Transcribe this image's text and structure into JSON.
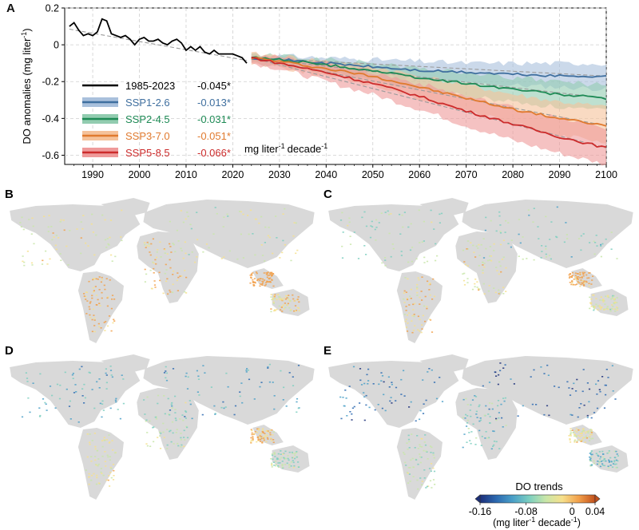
{
  "chart_data": [
    {
      "panel": "A",
      "type": "line",
      "ylabel_main": "DO anomalies (mg liter",
      "ylabel_sup": "-1",
      "ylabel_end": ")",
      "xlim": [
        1984,
        2100
      ],
      "ylim": [
        -0.65,
        0.2
      ],
      "xticks": [
        "1990",
        "2000",
        "2010",
        "2020",
        "2030",
        "2040",
        "2050",
        "2060",
        "2070",
        "2080",
        "2090",
        "2100"
      ],
      "yticks": [
        "0.2",
        "0",
        "-0.2",
        "-0.4",
        "-0.6"
      ],
      "grid": true,
      "legend_position": "lower-left",
      "trend_unit": "mg liter",
      "trend_unit_sup": "-1",
      "trend_unit_end": "decade",
      "trend_unit_sup2": "-1",
      "historical": {
        "name": "1985-2023",
        "trend": "-0.045*",
        "color": "#000000",
        "x": [
          1985,
          1986,
          1987,
          1988,
          1989,
          1990,
          1991,
          1992,
          1993,
          1994,
          1995,
          1996,
          1997,
          1998,
          1999,
          2000,
          2001,
          2002,
          2003,
          2004,
          2005,
          2006,
          2007,
          2008,
          2009,
          2010,
          2011,
          2012,
          2013,
          2014,
          2015,
          2016,
          2017,
          2018,
          2019,
          2020,
          2021,
          2022,
          2023
        ],
        "y": [
          0.1,
          0.12,
          0.08,
          0.05,
          0.06,
          0.05,
          0.07,
          0.14,
          0.13,
          0.06,
          0.05,
          0.04,
          0.05,
          0.03,
          0.0,
          0.03,
          0.04,
          0.02,
          0.02,
          0.03,
          0.01,
          0.0,
          0.02,
          0.03,
          0.01,
          -0.03,
          -0.01,
          -0.03,
          -0.01,
          -0.04,
          -0.05,
          -0.03,
          -0.05,
          -0.05,
          -0.05,
          -0.05,
          -0.06,
          -0.07,
          -0.1
        ]
      },
      "series": [
        {
          "name": "SSP1-2.6",
          "trend": "-0.013*",
          "color": "#3f6f9f",
          "band_color": "#a9c0dc",
          "x": [
            2024,
            2030,
            2040,
            2050,
            2060,
            2070,
            2080,
            2090,
            2100
          ],
          "y": [
            -0.07,
            -0.08,
            -0.1,
            -0.12,
            -0.14,
            -0.15,
            -0.16,
            -0.17,
            -0.17
          ],
          "lower": [
            -0.1,
            -0.11,
            -0.14,
            -0.16,
            -0.19,
            -0.21,
            -0.22,
            -0.23,
            -0.24
          ],
          "upper": [
            -0.05,
            -0.06,
            -0.07,
            -0.08,
            -0.09,
            -0.1,
            -0.1,
            -0.1,
            -0.1
          ]
        },
        {
          "name": "SSP2-4.5",
          "trend": "-0.031*",
          "color": "#1e8a55",
          "band_color": "#92ccb0",
          "x": [
            2024,
            2030,
            2040,
            2050,
            2060,
            2070,
            2080,
            2090,
            2100
          ],
          "y": [
            -0.07,
            -0.08,
            -0.11,
            -0.14,
            -0.18,
            -0.21,
            -0.24,
            -0.27,
            -0.29
          ],
          "lower": [
            -0.1,
            -0.11,
            -0.15,
            -0.19,
            -0.24,
            -0.28,
            -0.31,
            -0.34,
            -0.36
          ],
          "upper": [
            -0.05,
            -0.06,
            -0.08,
            -0.1,
            -0.13,
            -0.15,
            -0.18,
            -0.2,
            -0.22
          ]
        },
        {
          "name": "SSP3-7.0",
          "trend": "-0.051*",
          "color": "#e07a2e",
          "band_color": "#f5c29a",
          "x": [
            2024,
            2030,
            2040,
            2050,
            2060,
            2070,
            2080,
            2090,
            2100
          ],
          "y": [
            -0.07,
            -0.09,
            -0.13,
            -0.17,
            -0.23,
            -0.29,
            -0.35,
            -0.4,
            -0.44
          ],
          "lower": [
            -0.1,
            -0.12,
            -0.17,
            -0.22,
            -0.29,
            -0.36,
            -0.43,
            -0.49,
            -0.54
          ],
          "upper": [
            -0.05,
            -0.06,
            -0.09,
            -0.12,
            -0.17,
            -0.22,
            -0.27,
            -0.31,
            -0.34
          ]
        },
        {
          "name": "SSP5-8.5",
          "trend": "-0.066*",
          "color": "#cc2b2b",
          "band_color": "#ef9a9a",
          "x": [
            2024,
            2030,
            2040,
            2050,
            2060,
            2070,
            2080,
            2090,
            2100
          ],
          "y": [
            -0.07,
            -0.1,
            -0.15,
            -0.21,
            -0.28,
            -0.36,
            -0.43,
            -0.5,
            -0.56
          ],
          "lower": [
            -0.1,
            -0.13,
            -0.2,
            -0.27,
            -0.35,
            -0.44,
            -0.52,
            -0.59,
            -0.65
          ],
          "upper": [
            -0.05,
            -0.07,
            -0.1,
            -0.15,
            -0.21,
            -0.28,
            -0.34,
            -0.4,
            -0.45
          ]
        }
      ]
    },
    {
      "panel": "maps",
      "type": "heatmap",
      "panels": [
        "B",
        "C",
        "D",
        "E"
      ],
      "colorbar_title": "DO trends",
      "colorbar_ticks": [
        "-0.16",
        "-0.08",
        "0",
        "0.04"
      ],
      "colorbar_label_main": "(mg liter",
      "colorbar_label_sup": "-1",
      "colorbar_label_mid": " decade",
      "colorbar_label_sup2": "-1",
      "colorbar_label_end": ")",
      "colorbar_range": [
        -0.16,
        0.04
      ],
      "colorbar_colors": [
        "#1c2f7a",
        "#2c69b0",
        "#4aa0c8",
        "#7ccfc0",
        "#c8e6a8",
        "#f6e08c",
        "#f2a04a",
        "#c2501c"
      ],
      "land_color": "#d9d9d9"
    }
  ]
}
